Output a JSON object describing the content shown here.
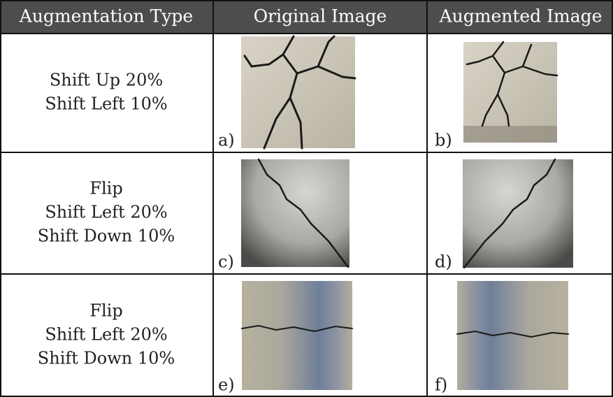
{
  "table": {
    "header": [
      "Augmentation Type",
      "Original Image",
      "Augmented Image"
    ],
    "rows": [
      {
        "type": [
          "Shift Up 20%",
          "Shift Left 10%"
        ],
        "original_label": "a)",
        "augmented_label": "b)"
      },
      {
        "type": [
          "Flip",
          "Shift Left 20%",
          "Shift Down 10%"
        ],
        "original_label": "c)",
        "augmented_label": "d)"
      },
      {
        "type": [
          "Flip",
          "Shift Left 20%",
          "Shift Down 10%"
        ],
        "original_label": "e)",
        "augmented_label": "f)"
      }
    ]
  }
}
